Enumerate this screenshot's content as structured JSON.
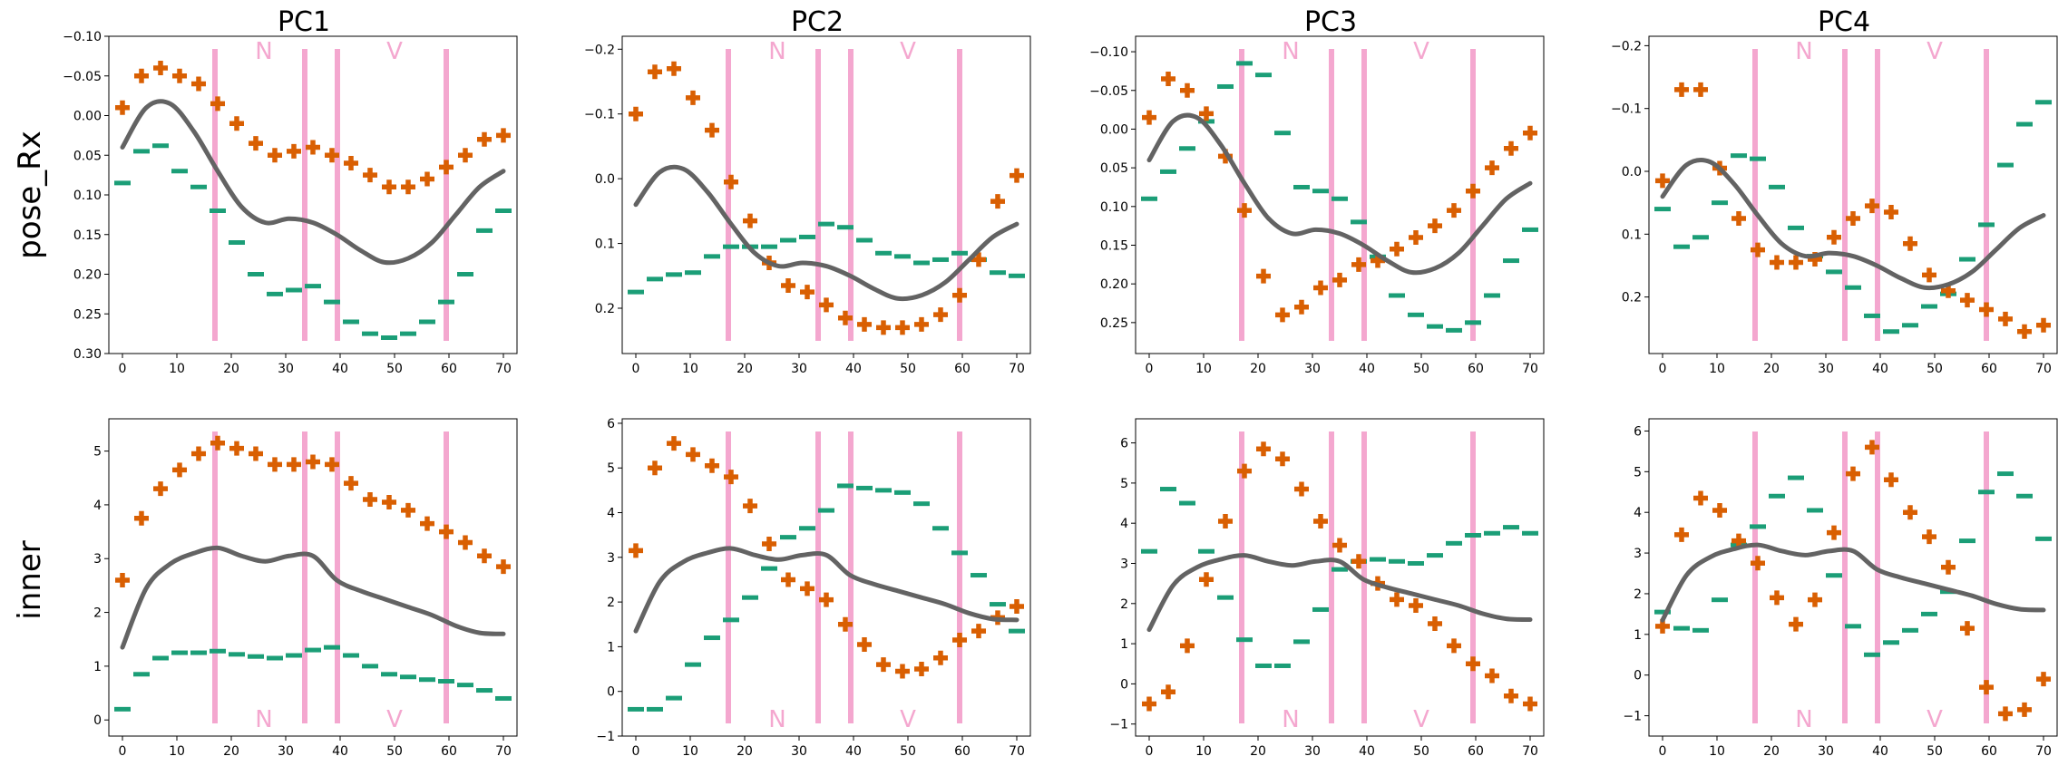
{
  "colors": {
    "cross": "#d95f02",
    "dash": "#1b9e77",
    "curve": "#636363",
    "boundary": "#f4a7cf",
    "region_label": "#f4a7cf"
  },
  "columns": [
    "PC1",
    "PC2",
    "PC3",
    "PC4"
  ],
  "rows": [
    "pose_Rx",
    "inner"
  ],
  "markers": {
    "cross": "plus-marker",
    "dash": "dash-marker",
    "curve": "smooth-line"
  },
  "chart_data": [
    {
      "type": "scatter",
      "row": "pose_Rx",
      "column": "PC1",
      "title": "PC1",
      "inverted_y": true,
      "ylim": [
        -0.1,
        0.3
      ],
      "yticks": [
        -0.1,
        -0.05,
        0.0,
        0.05,
        0.1,
        0.15,
        0.2,
        0.25,
        0.3
      ],
      "ytick_labels": [
        "−0.10",
        "−0.05",
        "0.00",
        "0.05",
        "0.10",
        "0.15",
        "0.20",
        "0.25",
        "0.30"
      ],
      "xlim": [
        -2.5,
        72.5
      ],
      "xticks": [
        0,
        10,
        20,
        30,
        40,
        50,
        60,
        70
      ],
      "boundaries": [
        17,
        33.5,
        39.5,
        59.5
      ],
      "region_labels": [
        {
          "text": "N",
          "x": 26
        },
        {
          "text": "V",
          "x": 50
        }
      ],
      "region_label_pos": "top",
      "x": [
        0,
        3.5,
        7,
        10.5,
        14,
        17.5,
        21,
        24.5,
        28,
        31.5,
        35,
        38.5,
        42,
        45.5,
        49,
        52.5,
        56,
        59.5,
        63,
        66.5,
        70
      ],
      "cross": [
        -0.01,
        -0.05,
        -0.06,
        -0.05,
        -0.04,
        -0.015,
        0.01,
        0.035,
        0.05,
        0.045,
        0.04,
        0.05,
        0.06,
        0.075,
        0.09,
        0.09,
        0.08,
        0.065,
        0.05,
        0.03,
        0.025
      ],
      "dash": [
        0.085,
        0.045,
        0.038,
        0.07,
        0.09,
        0.12,
        0.16,
        0.2,
        0.225,
        0.22,
        0.215,
        0.235,
        0.26,
        0.275,
        0.28,
        0.275,
        0.26,
        0.235,
        0.2,
        0.145,
        0.12
      ],
      "curve": [
        0.04,
        -0.01,
        -0.015,
        0.02,
        0.07,
        0.115,
        0.135,
        0.13,
        0.135,
        0.15,
        0.17,
        0.185,
        0.18,
        0.16,
        0.125,
        0.09,
        0.07
      ]
    },
    {
      "type": "scatter",
      "row": "pose_Rx",
      "column": "PC2",
      "title": "PC2",
      "inverted_y": true,
      "ylim": [
        -0.22,
        0.27
      ],
      "yticks": [
        -0.2,
        -0.1,
        0.0,
        0.1,
        0.2
      ],
      "ytick_labels": [
        "−0.2",
        "−0.1",
        "0.0",
        "0.1",
        "0.2"
      ],
      "xlim": [
        -2.5,
        72.5
      ],
      "xticks": [
        0,
        10,
        20,
        30,
        40,
        50,
        60,
        70
      ],
      "boundaries": [
        17,
        33.5,
        39.5,
        59.5
      ],
      "region_labels": [
        {
          "text": "N",
          "x": 26
        },
        {
          "text": "V",
          "x": 50
        }
      ],
      "region_label_pos": "top",
      "x": [
        0,
        3.5,
        7,
        10.5,
        14,
        17.5,
        21,
        24.5,
        28,
        31.5,
        35,
        38.5,
        42,
        45.5,
        49,
        52.5,
        56,
        59.5,
        63,
        66.5,
        70
      ],
      "cross": [
        -0.1,
        -0.165,
        -0.17,
        -0.125,
        -0.075,
        0.005,
        0.065,
        0.13,
        0.165,
        0.175,
        0.195,
        0.215,
        0.225,
        0.23,
        0.23,
        0.225,
        0.21,
        0.18,
        0.125,
        0.035,
        -0.005
      ],
      "dash": [
        0.175,
        0.155,
        0.148,
        0.145,
        0.12,
        0.105,
        0.105,
        0.105,
        0.095,
        0.09,
        0.07,
        0.075,
        0.095,
        0.115,
        0.12,
        0.13,
        0.125,
        0.115,
        0.125,
        0.145,
        0.15
      ],
      "curve": [
        0.04,
        -0.01,
        -0.015,
        0.02,
        0.07,
        0.115,
        0.135,
        0.13,
        0.135,
        0.15,
        0.17,
        0.185,
        0.18,
        0.16,
        0.125,
        0.09,
        0.07
      ]
    },
    {
      "type": "scatter",
      "row": "pose_Rx",
      "column": "PC3",
      "title": "PC3",
      "inverted_y": true,
      "ylim": [
        -0.12,
        0.29
      ],
      "yticks": [
        -0.1,
        -0.05,
        0.0,
        0.05,
        0.1,
        0.15,
        0.2,
        0.25
      ],
      "ytick_labels": [
        "−0.10",
        "−0.05",
        "0.00",
        "0.05",
        "0.10",
        "0.15",
        "0.20",
        "0.25"
      ],
      "xlim": [
        -2.5,
        72.5
      ],
      "xticks": [
        0,
        10,
        20,
        30,
        40,
        50,
        60,
        70
      ],
      "boundaries": [
        17,
        33.5,
        39.5,
        59.5
      ],
      "region_labels": [
        {
          "text": "N",
          "x": 26
        },
        {
          "text": "V",
          "x": 50
        }
      ],
      "region_label_pos": "top",
      "x": [
        0,
        3.5,
        7,
        10.5,
        14,
        17.5,
        21,
        24.5,
        28,
        31.5,
        35,
        38.5,
        42,
        45.5,
        49,
        52.5,
        56,
        59.5,
        63,
        66.5,
        70
      ],
      "cross": [
        -0.015,
        -0.065,
        -0.05,
        -0.02,
        0.035,
        0.105,
        0.19,
        0.24,
        0.23,
        0.205,
        0.195,
        0.175,
        0.17,
        0.155,
        0.14,
        0.125,
        0.105,
        0.08,
        0.05,
        0.025,
        0.005
      ],
      "dash": [
        0.09,
        0.055,
        0.025,
        -0.01,
        -0.055,
        -0.085,
        -0.07,
        0.005,
        0.075,
        0.08,
        0.09,
        0.12,
        0.165,
        0.215,
        0.24,
        0.255,
        0.26,
        0.25,
        0.215,
        0.17,
        0.13
      ],
      "curve": [
        0.04,
        -0.01,
        -0.015,
        0.02,
        0.07,
        0.115,
        0.135,
        0.13,
        0.135,
        0.15,
        0.17,
        0.185,
        0.18,
        0.16,
        0.125,
        0.09,
        0.07
      ]
    },
    {
      "type": "scatter",
      "row": "pose_Rx",
      "column": "PC4",
      "title": "PC4",
      "inverted_y": true,
      "ylim": [
        -0.215,
        0.29
      ],
      "yticks": [
        -0.2,
        -0.1,
        0.0,
        0.1,
        0.2
      ],
      "ytick_labels": [
        "−0.2",
        "−0.1",
        "0.0",
        "0.1",
        "0.2"
      ],
      "xlim": [
        -2.5,
        72.5
      ],
      "xticks": [
        0,
        10,
        20,
        30,
        40,
        50,
        60,
        70
      ],
      "boundaries": [
        17,
        33.5,
        39.5,
        59.5
      ],
      "region_labels": [
        {
          "text": "N",
          "x": 26
        },
        {
          "text": "V",
          "x": 50
        }
      ],
      "region_label_pos": "top",
      "x": [
        0,
        3.5,
        7,
        10.5,
        14,
        17.5,
        21,
        24.5,
        28,
        31.5,
        35,
        38.5,
        42,
        45.5,
        49,
        52.5,
        56,
        59.5,
        63,
        66.5,
        70
      ],
      "cross": [
        0.015,
        -0.13,
        -0.13,
        -0.005,
        0.075,
        0.125,
        0.145,
        0.145,
        0.14,
        0.105,
        0.075,
        0.055,
        0.065,
        0.115,
        0.165,
        0.19,
        0.205,
        0.22,
        0.235,
        0.255,
        0.245
      ],
      "dash": [
        0.06,
        0.12,
        0.105,
        0.05,
        -0.025,
        -0.02,
        0.025,
        0.09,
        0.135,
        0.16,
        0.185,
        0.23,
        0.255,
        0.245,
        0.215,
        0.195,
        0.14,
        0.085,
        -0.01,
        -0.075,
        -0.11
      ],
      "curve": [
        0.04,
        -0.01,
        -0.015,
        0.02,
        0.07,
        0.115,
        0.135,
        0.13,
        0.135,
        0.15,
        0.17,
        0.185,
        0.18,
        0.16,
        0.125,
        0.09,
        0.07
      ]
    },
    {
      "type": "scatter",
      "row": "inner",
      "column": "PC1",
      "title": "",
      "inverted_y": false,
      "ylim": [
        -0.3,
        5.6
      ],
      "yticks": [
        0,
        1,
        2,
        3,
        4,
        5
      ],
      "ytick_labels": [
        "0",
        "1",
        "2",
        "3",
        "4",
        "5"
      ],
      "xlim": [
        -2.5,
        72.5
      ],
      "xticks": [
        0,
        10,
        20,
        30,
        40,
        50,
        60,
        70
      ],
      "boundaries": [
        17,
        33.5,
        39.5,
        59.5
      ],
      "region_labels": [
        {
          "text": "N",
          "x": 26
        },
        {
          "text": "V",
          "x": 50
        }
      ],
      "region_label_pos": "bottom",
      "x": [
        0,
        3.5,
        7,
        10.5,
        14,
        17.5,
        21,
        24.5,
        28,
        31.5,
        35,
        38.5,
        42,
        45.5,
        49,
        52.5,
        56,
        59.5,
        63,
        66.5,
        70
      ],
      "cross": [
        2.6,
        3.75,
        4.3,
        4.65,
        4.95,
        5.15,
        5.05,
        4.95,
        4.75,
        4.75,
        4.8,
        4.75,
        4.4,
        4.1,
        4.05,
        3.9,
        3.65,
        3.5,
        3.3,
        3.05,
        2.85
      ],
      "dash": [
        0.2,
        0.85,
        1.15,
        1.25,
        1.25,
        1.28,
        1.22,
        1.18,
        1.15,
        1.2,
        1.3,
        1.35,
        1.2,
        1.0,
        0.85,
        0.8,
        0.75,
        0.72,
        0.65,
        0.55,
        0.4
      ],
      "curve": [
        1.35,
        2.45,
        2.9,
        3.1,
        3.2,
        3.05,
        2.95,
        3.05,
        3.05,
        2.6,
        2.4,
        2.25,
        2.1,
        1.95,
        1.75,
        1.62,
        1.6
      ]
    },
    {
      "type": "scatter",
      "row": "inner",
      "column": "PC2",
      "title": "",
      "inverted_y": false,
      "ylim": [
        -1.0,
        6.1
      ],
      "yticks": [
        -1,
        0,
        1,
        2,
        3,
        4,
        5,
        6
      ],
      "ytick_labels": [
        "−1",
        "0",
        "1",
        "2",
        "3",
        "4",
        "5",
        "6"
      ],
      "xlim": [
        -2.5,
        72.5
      ],
      "xticks": [
        0,
        10,
        20,
        30,
        40,
        50,
        60,
        70
      ],
      "boundaries": [
        17,
        33.5,
        39.5,
        59.5
      ],
      "region_labels": [
        {
          "text": "N",
          "x": 26
        },
        {
          "text": "V",
          "x": 50
        }
      ],
      "region_label_pos": "bottom",
      "x": [
        0,
        3.5,
        7,
        10.5,
        14,
        17.5,
        21,
        24.5,
        28,
        31.5,
        35,
        38.5,
        42,
        45.5,
        49,
        52.5,
        56,
        59.5,
        63,
        66.5,
        70
      ],
      "cross": [
        3.15,
        5.0,
        5.55,
        5.3,
        5.05,
        4.8,
        4.15,
        3.3,
        2.5,
        2.3,
        2.05,
        1.5,
        1.05,
        0.6,
        0.45,
        0.5,
        0.75,
        1.15,
        1.35,
        1.65,
        1.9
      ],
      "dash": [
        -0.4,
        -0.4,
        -0.15,
        0.6,
        1.2,
        1.6,
        2.1,
        2.75,
        3.45,
        3.65,
        4.05,
        4.6,
        4.55,
        4.5,
        4.45,
        4.2,
        3.65,
        3.1,
        2.6,
        1.95,
        1.35
      ],
      "curve": [
        1.35,
        2.45,
        2.9,
        3.1,
        3.2,
        3.05,
        2.95,
        3.05,
        3.05,
        2.6,
        2.4,
        2.25,
        2.1,
        1.95,
        1.75,
        1.62,
        1.6
      ]
    },
    {
      "type": "scatter",
      "row": "inner",
      "column": "PC3",
      "title": "",
      "inverted_y": false,
      "ylim": [
        -1.3,
        6.6
      ],
      "yticks": [
        -1,
        0,
        1,
        2,
        3,
        4,
        5,
        6
      ],
      "ytick_labels": [
        "−1",
        "0",
        "1",
        "2",
        "3",
        "4",
        "5",
        "6"
      ],
      "xlim": [
        -2.5,
        72.5
      ],
      "xticks": [
        0,
        10,
        20,
        30,
        40,
        50,
        60,
        70
      ],
      "boundaries": [
        17,
        33.5,
        39.5,
        59.5
      ],
      "region_labels": [
        {
          "text": "N",
          "x": 26
        },
        {
          "text": "V",
          "x": 50
        }
      ],
      "region_label_pos": "bottom",
      "x": [
        0,
        3.5,
        7,
        10.5,
        14,
        17.5,
        21,
        24.5,
        28,
        31.5,
        35,
        38.5,
        42,
        45.5,
        49,
        52.5,
        56,
        59.5,
        63,
        66.5,
        70
      ],
      "cross": [
        -0.5,
        -0.2,
        0.95,
        2.6,
        4.05,
        5.3,
        5.85,
        5.6,
        4.85,
        4.05,
        3.45,
        3.05,
        2.5,
        2.1,
        1.95,
        1.5,
        0.95,
        0.5,
        0.2,
        -0.3,
        -0.5
      ],
      "dash": [
        3.3,
        4.85,
        4.5,
        3.3,
        2.15,
        1.1,
        0.45,
        0.45,
        1.05,
        1.85,
        2.85,
        3.05,
        3.1,
        3.05,
        3.0,
        3.2,
        3.5,
        3.7,
        3.75,
        3.9,
        3.75
      ],
      "curve": [
        1.35,
        2.45,
        2.9,
        3.1,
        3.2,
        3.05,
        2.95,
        3.05,
        3.05,
        2.6,
        2.4,
        2.25,
        2.1,
        1.95,
        1.75,
        1.62,
        1.6
      ]
    },
    {
      "type": "scatter",
      "row": "inner",
      "column": "PC4",
      "title": "",
      "inverted_y": false,
      "ylim": [
        -1.5,
        6.3
      ],
      "yticks": [
        -1,
        0,
        1,
        2,
        3,
        4,
        5,
        6
      ],
      "ytick_labels": [
        "−1",
        "0",
        "1",
        "2",
        "3",
        "4",
        "5",
        "6"
      ],
      "xlim": [
        -2.5,
        72.5
      ],
      "xticks": [
        0,
        10,
        20,
        30,
        40,
        50,
        60,
        70
      ],
      "boundaries": [
        17,
        33.5,
        39.5,
        59.5
      ],
      "region_labels": [
        {
          "text": "N",
          "x": 26
        },
        {
          "text": "V",
          "x": 50
        }
      ],
      "region_label_pos": "bottom",
      "x": [
        0,
        3.5,
        7,
        10.5,
        14,
        17.5,
        21,
        24.5,
        28,
        31.5,
        35,
        38.5,
        42,
        45.5,
        49,
        52.5,
        56,
        59.5,
        63,
        66.5,
        70
      ],
      "cross": [
        1.2,
        3.45,
        4.35,
        4.05,
        3.3,
        2.75,
        1.9,
        1.25,
        1.85,
        3.5,
        4.95,
        5.6,
        4.8,
        4.0,
        3.4,
        2.65,
        1.15,
        -0.3,
        -0.95,
        -0.85,
        -0.1
      ],
      "dash": [
        1.55,
        1.15,
        1.1,
        1.85,
        3.2,
        3.65,
        4.4,
        4.85,
        4.05,
        2.45,
        1.2,
        0.5,
        0.8,
        1.1,
        1.5,
        2.05,
        3.3,
        4.5,
        4.95,
        4.4,
        3.35
      ],
      "curve": [
        1.35,
        2.45,
        2.9,
        3.1,
        3.2,
        3.05,
        2.95,
        3.05,
        3.05,
        2.6,
        2.4,
        2.25,
        2.1,
        1.95,
        1.75,
        1.62,
        1.6
      ]
    }
  ]
}
